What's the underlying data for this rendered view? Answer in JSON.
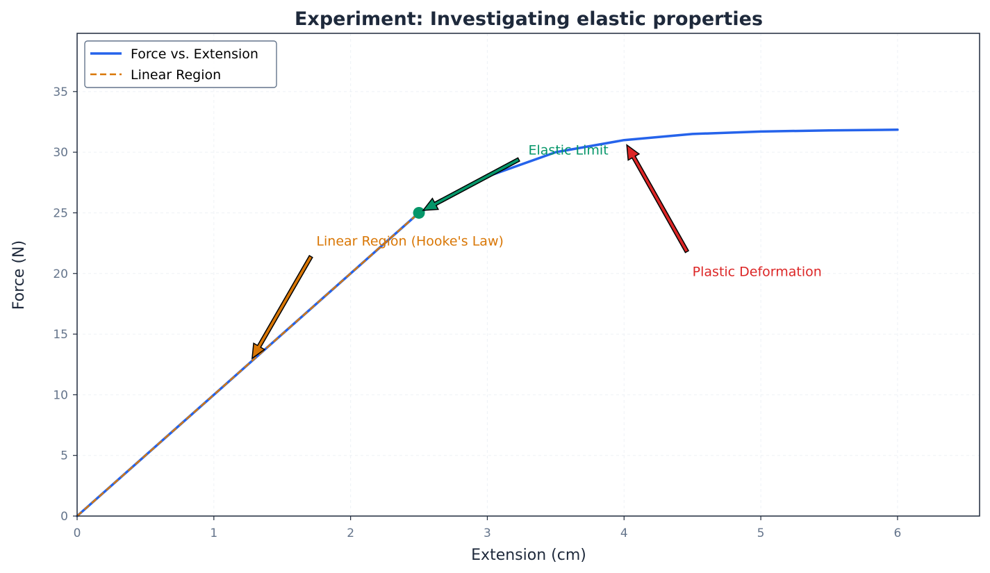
{
  "chart_data": {
    "type": "line",
    "title": "Experiment: Investigating elastic properties",
    "xlabel": "Extension (cm)",
    "ylabel": "Force (N)",
    "xlim": [
      0,
      6.6
    ],
    "ylim": [
      0,
      39.8
    ],
    "xticks": [
      0,
      1,
      2,
      3,
      4,
      5,
      6
    ],
    "yticks": [
      0,
      5,
      10,
      15,
      20,
      25,
      30,
      35
    ],
    "grid": true,
    "legend_position": "top-left",
    "series": [
      {
        "name": "Force vs. Extension",
        "color": "#2563eb",
        "style": "solid",
        "x": [
          0,
          0.5,
          1,
          1.5,
          2,
          2.5,
          3,
          3.5,
          4,
          4.5,
          5,
          5.5,
          6
        ],
        "y": [
          0,
          5,
          10,
          15,
          20,
          25,
          28,
          30,
          31,
          31.5,
          31.7,
          31.8,
          31.85
        ]
      },
      {
        "name": "Linear Region",
        "color": "#d97706",
        "style": "dashed",
        "x": [
          0,
          2.5
        ],
        "y": [
          0,
          25
        ]
      }
    ],
    "markers": [
      {
        "x": 2.5,
        "y": 25,
        "color": "#059669"
      }
    ],
    "annotations": [
      {
        "text": "Elastic Limit",
        "color": "#059669",
        "text_x": 3.3,
        "text_y": 30.2,
        "tail_x": 3.23,
        "tail_y": 29.4,
        "head_x": 2.53,
        "head_y": 25.2
      },
      {
        "text": "Linear Region (Hooke's Law)",
        "color": "#d97706",
        "text_x": 1.75,
        "text_y": 22.7,
        "tail_x": 1.71,
        "tail_y": 21.4,
        "head_x": 1.28,
        "head_y": 13.0
      },
      {
        "text": "Plastic Deformation",
        "color": "#dc2626",
        "text_x": 4.5,
        "text_y": 20.2,
        "tail_x": 4.46,
        "tail_y": 21.8,
        "head_x": 4.02,
        "head_y": 30.6
      }
    ]
  }
}
